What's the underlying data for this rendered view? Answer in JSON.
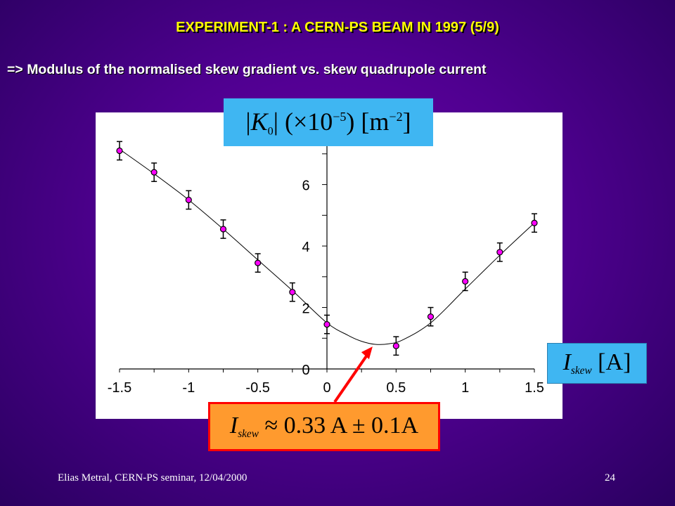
{
  "slide": {
    "title": "EXPERIMENT-1 : A CERN-PS BEAM IN 1997 (5/9)",
    "subtitle": "=> Modulus of the normalised skew gradient vs. skew quadrupole current",
    "footer_left": "Elias Metral, CERN-PS seminar, 12/04/2000",
    "page_number": "24"
  },
  "labels": {
    "ylabel_K": "K",
    "ylabel_K_sub": "0",
    "ylabel_factor": "(×10",
    "ylabel_factor_exp": "−5",
    "ylabel_unit": "m",
    "ylabel_unit_exp": "−2",
    "xlabel_I": "I",
    "xlabel_sub": "skew",
    "xlabel_unit": "A",
    "result_I": "I",
    "result_sub": "skew",
    "result_value": "≈ 0.33 A ± 0.1A"
  },
  "colors": {
    "marker_fill": "#ff00ff",
    "marker_stroke": "#000000",
    "arrow": "#ff0000",
    "label_box": "#3fb6f2",
    "result_box": "#ff9a2e"
  },
  "chart_data": {
    "type": "scatter",
    "x": [
      -1.5,
      -1.25,
      -1.0,
      -0.75,
      -0.5,
      -0.25,
      0.0,
      0.5,
      0.75,
      1.0,
      1.25,
      1.5
    ],
    "y": [
      7.1,
      6.4,
      5.5,
      4.55,
      3.45,
      2.5,
      1.45,
      0.75,
      1.7,
      2.85,
      3.8,
      4.75
    ],
    "error": [
      0.3,
      0.3,
      0.3,
      0.3,
      0.3,
      0.3,
      0.3,
      0.3,
      0.3,
      0.3,
      0.3,
      0.3
    ],
    "fit_curve": {
      "x": [
        -1.5,
        -1.25,
        -1.0,
        -0.75,
        -0.5,
        -0.25,
        0.0,
        0.15,
        0.25,
        0.35,
        0.45,
        0.55,
        0.75,
        1.0,
        1.25,
        1.5
      ],
      "y": [
        7.15,
        6.35,
        5.5,
        4.55,
        3.55,
        2.55,
        1.5,
        1.1,
        0.9,
        0.8,
        0.82,
        0.95,
        1.5,
        2.6,
        3.7,
        4.75
      ]
    },
    "xlim": [
      -1.5,
      1.5
    ],
    "ylim": [
      0,
      7.5
    ],
    "x_ticks": [
      "-1.5",
      "-1",
      "-0.5",
      "0",
      "0.5",
      "1",
      "1.5"
    ],
    "y_ticks": [
      "0",
      "2",
      "4",
      "6"
    ],
    "grid": false
  }
}
